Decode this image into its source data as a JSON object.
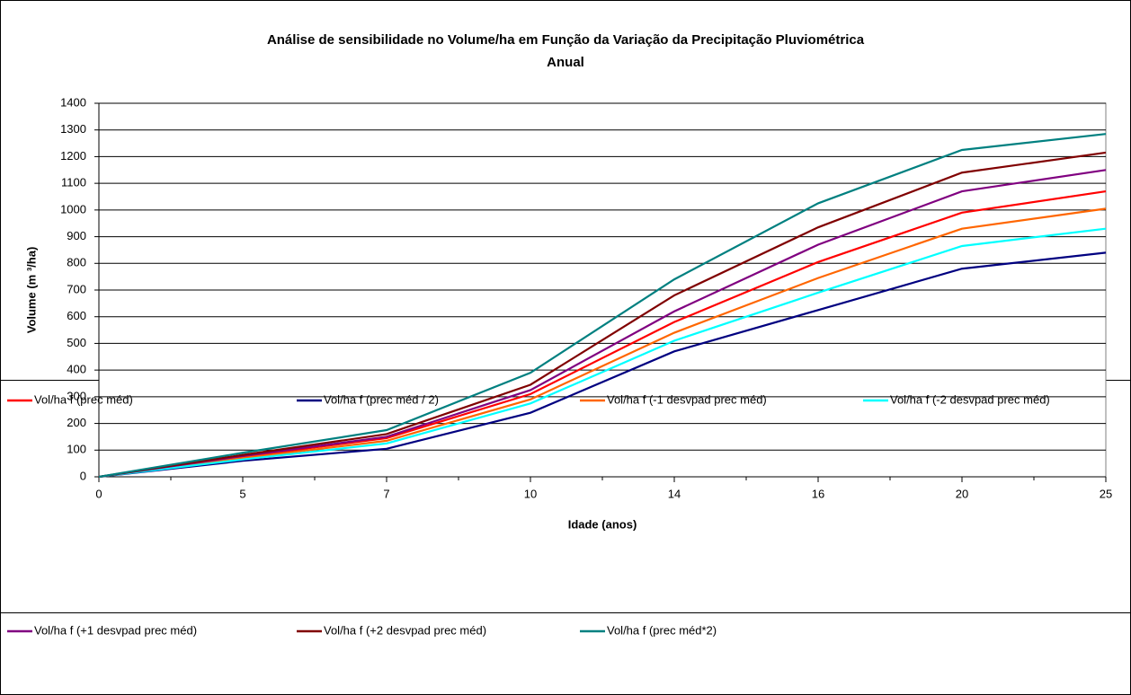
{
  "chart_data": {
    "type": "line",
    "title": [
      "Análise de sensibilidade no Volume/ha em Função da Variação da Precipitação Pluviométrica",
      "Anual"
    ],
    "x_label": "Idade (anos)",
    "y_label": "Volume (m ³/ha)",
    "categories": [
      "0",
      "5",
      "7",
      "10",
      "14",
      "16",
      "20",
      "25"
    ],
    "ylim": [
      0,
      1400
    ],
    "yticks": [
      0,
      100,
      200,
      300,
      400,
      500,
      600,
      700,
      800,
      900,
      1000,
      1100,
      1200,
      1300,
      1400
    ],
    "grid": true,
    "legend": "bottom",
    "series": [
      {
        "name": "Vol/ha f (prec méd)",
        "color": "#ff0000",
        "values": [
          0,
          75,
          145,
          310,
          580,
          805,
          990,
          1070
        ]
      },
      {
        "name": "Vol/ha f (prec méd / 2)",
        "color": "#000080",
        "values": [
          0,
          60,
          105,
          240,
          470,
          625,
          780,
          840
        ]
      },
      {
        "name": "Vol/ha f (-1 desvpad prec méd)",
        "color": "#ff6600",
        "values": [
          0,
          70,
          135,
          290,
          540,
          745,
          930,
          1005
        ]
      },
      {
        "name": "Vol/ha f (-2 desvpad prec méd)",
        "color": "#00ffff",
        "values": [
          0,
          65,
          125,
          275,
          510,
          690,
          865,
          930
        ]
      },
      {
        "name": "Vol/ha f (+1 desvpad prec méd)",
        "color": "#800080",
        "values": [
          0,
          78,
          150,
          325,
          620,
          870,
          1070,
          1150
        ]
      },
      {
        "name": "Vol/ha f (+2 desvpad prec méd)",
        "color": "#800000",
        "values": [
          0,
          82,
          160,
          345,
          680,
          935,
          1140,
          1215
        ]
      },
      {
        "name": "Vol/ha f (prec méd*2)",
        "color": "#008080",
        "values": [
          0,
          90,
          175,
          390,
          740,
          1025,
          1225,
          1285
        ]
      }
    ]
  }
}
